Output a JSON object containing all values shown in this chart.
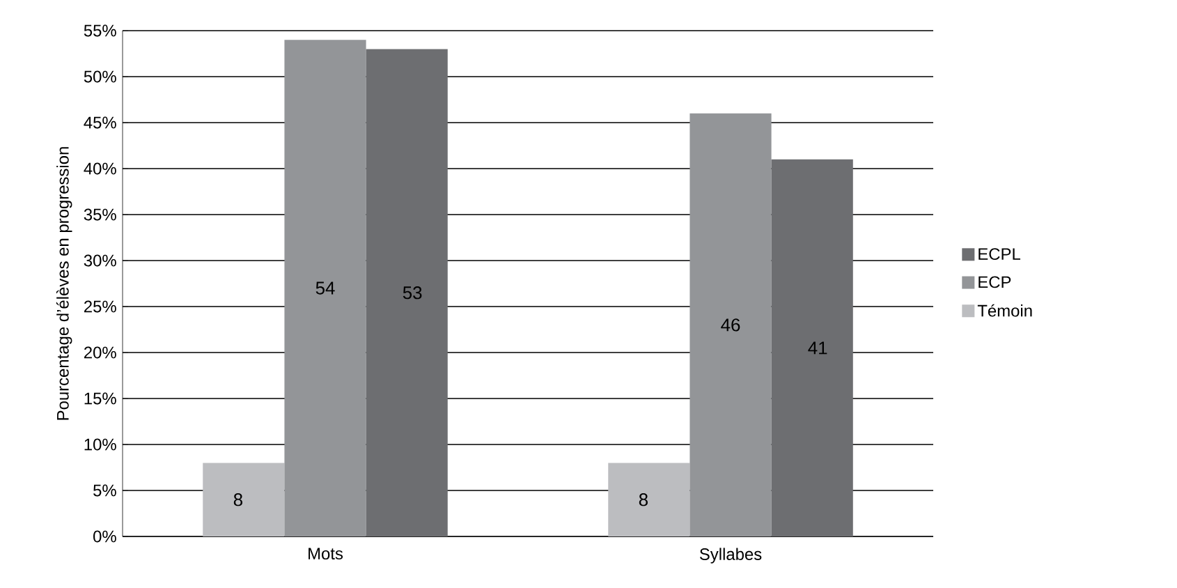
{
  "chart_data": {
    "type": "bar",
    "ylabel": "Pourcentage d’élèves en progression",
    "categories": [
      "Mots",
      "Syllabes"
    ],
    "series": [
      {
        "name": "Témoin",
        "color": "#bcbdc0",
        "values": [
          8,
          8
        ]
      },
      {
        "name": "ECP",
        "color": "#939598",
        "values": [
          54,
          46
        ]
      },
      {
        "name": "ECPL",
        "color": "#6d6e71",
        "values": [
          53,
          41
        ]
      }
    ],
    "ylim": [
      0,
      55
    ],
    "yticks": [
      {
        "value": 0,
        "label": "0%"
      },
      {
        "value": 5,
        "label": "5%"
      },
      {
        "value": 10,
        "label": "10%"
      },
      {
        "value": 15,
        "label": "15%"
      },
      {
        "value": 20,
        "label": "20%"
      },
      {
        "value": 25,
        "label": "25%"
      },
      {
        "value": 30,
        "label": "30%"
      },
      {
        "value": 35,
        "label": "35%"
      },
      {
        "value": 40,
        "label": "40%"
      },
      {
        "value": 45,
        "label": "45%"
      },
      {
        "value": 50,
        "label": "50%"
      },
      {
        "value": 55,
        "label": "55%"
      }
    ],
    "grid": "y",
    "legend": "right",
    "data_labels": true
  }
}
